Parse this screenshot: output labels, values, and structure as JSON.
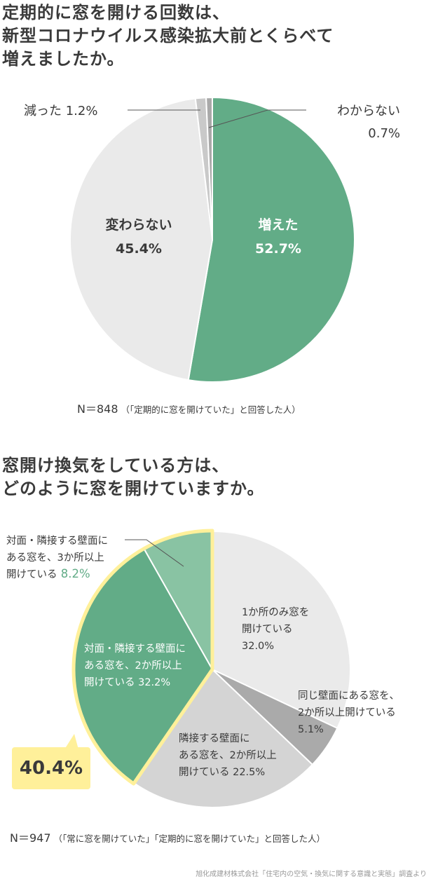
{
  "chart_data": [
    {
      "type": "pie",
      "title": "定期的に窓を開ける回数は、\n新型コロナウイルス感染拡大前とくらべて\n増えましたか。",
      "categories": [
        "増えた",
        "変わらない",
        "減った",
        "わからない"
      ],
      "values": [
        52.7,
        45.4,
        1.2,
        0.7
      ],
      "colors": [
        "#62ac87",
        "#eaeaea",
        "#c9c9c9",
        "#a9a9a9"
      ],
      "labels": [
        "増えた\n52.7%",
        "変わらない\n45.4%",
        "減った 1.2%",
        "わからない\n0.7%"
      ],
      "note": "N＝848",
      "note_sub": "（「定期的に窓を開けていた」と回答した人）"
    },
    {
      "type": "pie",
      "title": "窓開け換気をしている方は、\nどのように窓を開けていますか。",
      "categories": [
        "1か所のみ窓を開けている",
        "同じ壁面にある窓を、2か所以上開けている",
        "隣接する壁面にある窓を、2か所以上開けている",
        "対面・隣接する壁面にある窓を、2か所以上開けている",
        "対面・隣接する壁面にある窓を、3か所以上開けている"
      ],
      "values": [
        32.0,
        5.1,
        22.5,
        32.2,
        8.2
      ],
      "colors": [
        "#eaeaea",
        "#aaaaaa",
        "#d4d4d4",
        "#62ac87",
        "#89c3a3"
      ],
      "labels": [
        "1か所のみ窓を\n開けている\n32.0%",
        "同じ壁面にある窓を、\n2か所以上開けている\n5.1%",
        "隣接する壁面に\nある窓を、2か所以上\n開けている 22.5%",
        "対面・隣接する壁面に\nある窓を、2か所以上\n開けている 32.2%",
        "対面・隣接する壁面に\nある窓を、3か所以上\n開けている 8.2%"
      ],
      "highlight_total": "40.4%",
      "highlight_color": "#fff09a",
      "note": "N＝947",
      "note_sub": "（「常に窓を開けていた」「定期的に窓を開けていた」と回答した人）"
    }
  ],
  "source": "旭化成建材株式会社「住宅内の空気・換気に関する意識と実態」調査より"
}
